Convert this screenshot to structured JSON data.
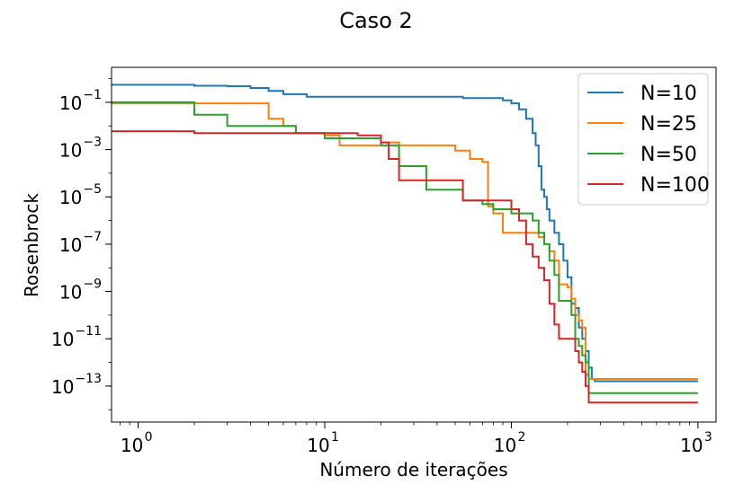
{
  "chart_data": {
    "type": "line",
    "title": "Caso 2",
    "xlabel": "Número de iterações",
    "ylabel": "Rosenbrock",
    "xscale": "log",
    "yscale": "log",
    "xlim": [
      0.72,
      1250
    ],
    "ylim": [
      3e-15,
      3
    ],
    "xticks": [
      {
        "value": 1,
        "base": "10",
        "exp": "0"
      },
      {
        "value": 10,
        "base": "10",
        "exp": "1"
      },
      {
        "value": 100,
        "base": "10",
        "exp": "2"
      },
      {
        "value": 1000,
        "base": "10",
        "exp": "3"
      }
    ],
    "yticks": [
      {
        "value": 1e-13,
        "base": "10",
        "exp": "−13"
      },
      {
        "value": 1e-11,
        "base": "10",
        "exp": "−11"
      },
      {
        "value": 1e-09,
        "base": "10",
        "exp": "−9"
      },
      {
        "value": 1e-07,
        "base": "10",
        "exp": "−7"
      },
      {
        "value": 1e-05,
        "base": "10",
        "exp": "−5"
      },
      {
        "value": 0.001,
        "base": "10",
        "exp": "−3"
      },
      {
        "value": 0.1,
        "base": "10",
        "exp": "−1"
      }
    ],
    "grid": false,
    "legend_position": "top-right",
    "series": [
      {
        "name": "N=10",
        "color": "#1f77b4",
        "x": [
          0.72,
          1,
          2,
          3,
          4,
          5,
          6,
          8,
          10,
          20,
          30,
          50,
          55,
          70,
          90,
          100,
          110,
          120,
          130,
          135,
          140,
          145,
          150,
          155,
          160,
          170,
          180,
          190,
          200,
          210,
          220,
          230,
          240,
          250,
          260,
          270,
          280,
          1000
        ],
        "y": [
          0.55,
          0.55,
          0.5,
          0.48,
          0.4,
          0.3,
          0.22,
          0.17,
          0.17,
          0.17,
          0.17,
          0.17,
          0.15,
          0.15,
          0.12,
          0.09,
          0.05,
          0.02,
          0.005,
          0.0015,
          0.0002,
          2e-05,
          1e-05,
          3e-06,
          1e-06,
          3e-07,
          1e-07,
          2e-08,
          4e-09,
          3e-10,
          2e-10,
          3e-11,
          1e-11,
          3e-12,
          6e-13,
          2e-13,
          1.6e-13,
          1.6e-13
        ]
      },
      {
        "name": "N=25",
        "color": "#ff7f0e",
        "x": [
          0.72,
          1,
          2,
          3,
          4,
          5,
          6,
          7,
          10,
          12,
          20,
          25,
          50,
          60,
          70,
          75,
          80,
          90,
          100,
          120,
          140,
          150,
          160,
          170,
          180,
          200,
          210,
          220,
          230,
          240,
          250,
          260,
          270,
          1000
        ],
        "y": [
          0.09,
          0.09,
          0.09,
          0.09,
          0.09,
          0.02,
          0.01,
          0.005,
          0.004,
          0.0015,
          0.002,
          0.0015,
          0.0009,
          0.0004,
          0.0003,
          4e-06,
          2e-06,
          3e-07,
          3e-07,
          3e-07,
          2e-07,
          1e-07,
          5e-08,
          2e-08,
          2e-09,
          1.5e-09,
          5e-10,
          1e-10,
          6e-11,
          3e-11,
          3e-13,
          2e-13,
          2e-13,
          2e-13
        ]
      },
      {
        "name": "N=50",
        "color": "#2ca02c",
        "x": [
          0.72,
          1,
          2,
          3,
          5,
          7,
          10,
          20,
          25,
          35,
          50,
          55,
          70,
          80,
          90,
          100,
          110,
          130,
          140,
          150,
          160,
          170,
          180,
          200,
          210,
          220,
          230,
          240,
          250,
          260,
          270,
          1000
        ],
        "y": [
          0.1,
          0.1,
          0.03,
          0.01,
          0.01,
          0.005,
          0.003,
          0.0015,
          0.0002,
          2e-05,
          2e-05,
          7e-06,
          5e-06,
          3e-06,
          3e-06,
          2e-06,
          2e-06,
          1e-06,
          3e-07,
          1e-07,
          2e-08,
          5e-09,
          4e-10,
          4e-10,
          1e-10,
          1e-11,
          5e-12,
          2e-12,
          1e-12,
          5e-14,
          5e-14,
          5e-14
        ]
      },
      {
        "name": "N=100",
        "color": "#d62728",
        "x": [
          0.72,
          1,
          2,
          3,
          7,
          10,
          15,
          20,
          22,
          25,
          35,
          55,
          60,
          80,
          100,
          110,
          120,
          130,
          140,
          150,
          160,
          170,
          180,
          190,
          200,
          210,
          220,
          230,
          240,
          250,
          260,
          270,
          1000
        ],
        "y": [
          0.006,
          0.006,
          0.005,
          0.005,
          0.005,
          0.005,
          0.004,
          0.002,
          0.0004,
          5e-05,
          5e-05,
          7e-06,
          7e-06,
          7e-06,
          3e-06,
          1e-06,
          1e-07,
          3e-08,
          1e-08,
          3e-09,
          3e-10,
          4e-11,
          1e-11,
          1e-11,
          1e-11,
          1e-11,
          3e-12,
          1e-12,
          4e-13,
          1e-13,
          2e-14,
          2e-14,
          2e-14
        ]
      }
    ]
  }
}
